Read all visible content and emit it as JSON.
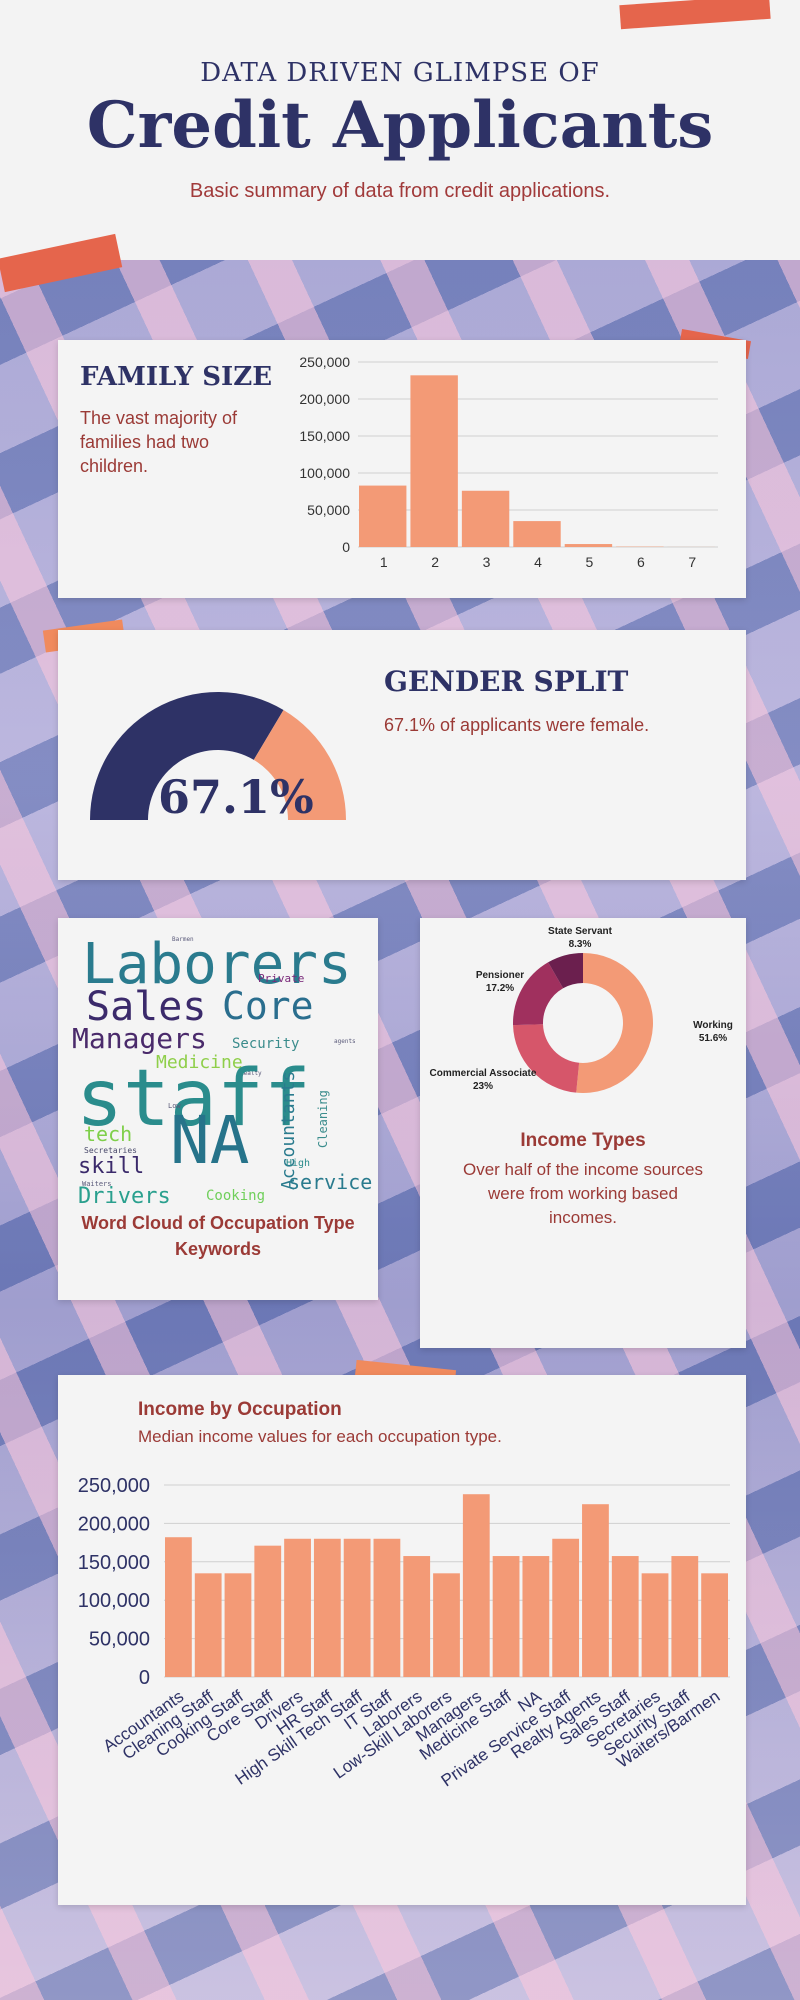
{
  "header": {
    "kicker": "DATA DRIVEN GLIMPSE OF",
    "title": "Credit Applicants",
    "subtitle": "Basic summary of data from credit applications."
  },
  "family_size": {
    "heading": "FAMILY SIZE",
    "text": "The vast majority of families had two children."
  },
  "gender": {
    "heading": "GENDER SPLIT",
    "text": "67.1% of applicants were female.",
    "value_label": "67.1%"
  },
  "wordcloud": {
    "caption": "Word Cloud of Occupation Type Keywords",
    "words": [
      {
        "text": "Laborers",
        "color": "#2a7b8e"
      },
      {
        "text": "Sales",
        "color": "#3b2a6b"
      },
      {
        "text": "Core",
        "color": "#2a6e8e"
      },
      {
        "text": "Private",
        "color": "#7a2a7a"
      },
      {
        "text": "Managers",
        "color": "#4a2a6b"
      },
      {
        "text": "Security",
        "color": "#3a8c8c"
      },
      {
        "text": "Medicine",
        "color": "#8fcf4a"
      },
      {
        "text": "staff",
        "color": "#2a8c8c"
      },
      {
        "text": "NA",
        "color": "#26738a"
      },
      {
        "text": "tech",
        "color": "#7fcf4a"
      },
      {
        "text": "Accountants",
        "color": "#2a7b8e"
      },
      {
        "text": "Cleaning",
        "color": "#3a8c8c"
      },
      {
        "text": "skill",
        "color": "#3b2a6b"
      },
      {
        "text": "Drivers",
        "color": "#2aa08e"
      },
      {
        "text": "Cooking",
        "color": "#6fcf5a"
      },
      {
        "text": "service",
        "color": "#2a8c8c"
      },
      {
        "text": "High",
        "color": "#2a7b8e"
      },
      {
        "text": "Secretaries",
        "color": "#4a4a6b"
      },
      {
        "text": "Waiters",
        "color": "#5a5a7a"
      },
      {
        "text": "Barmen",
        "color": "#5a5a7a"
      },
      {
        "text": "agents",
        "color": "#5a5a7a"
      },
      {
        "text": "Realty",
        "color": "#5a5a7a"
      },
      {
        "text": "Low",
        "color": "#5a5a7a"
      }
    ]
  },
  "income_types": {
    "heading": "Income Types",
    "text": "Over half of the income sources were from working based incomes."
  },
  "occupation": {
    "heading": "Income by Occupation",
    "text": "Median income values for each occupation type."
  },
  "colors": {
    "navy": "#2e3266",
    "salmon": "#f39a76",
    "red_text": "#9b3a36"
  },
  "chart_data": [
    {
      "id": "family_size",
      "type": "bar",
      "categories": [
        "1",
        "2",
        "3",
        "4",
        "5",
        "6",
        "7"
      ],
      "values": [
        83000,
        232000,
        76000,
        35000,
        4000,
        500,
        100
      ],
      "ylim": [
        0,
        250000
      ],
      "yticks": [
        "0",
        "50,000",
        "100,000",
        "150,000",
        "200,000",
        "250,000"
      ],
      "color": "#f39a76",
      "grid": true
    },
    {
      "id": "gender",
      "type": "pie",
      "labels": [
        "female",
        "male"
      ],
      "values": [
        67.1,
        32.9
      ],
      "colors": [
        "#2e3266",
        "#f39a76"
      ]
    },
    {
      "id": "income_types",
      "type": "pie",
      "slices": [
        {
          "label": "Working",
          "value": 51.6,
          "label_text": "51.6%",
          "color": "#f39a76"
        },
        {
          "label": "Commercial Associate",
          "value": 23,
          "label_text": "23%",
          "color": "#d6566a"
        },
        {
          "label": "Pensioner",
          "value": 17.2,
          "label_text": "17.2%",
          "color": "#a0305e"
        },
        {
          "label": "State Servant",
          "value": 8.3,
          "label_text": "8.3%",
          "color": "#6b1f4e"
        }
      ]
    },
    {
      "id": "occupation",
      "type": "bar",
      "categories": [
        "Accountants",
        "Cleaning Staff",
        "Cooking Staff",
        "Core Staff",
        "Drivers",
        "HR Staff",
        "High Skill Tech Staff",
        "IT Staff",
        "Laborers",
        "Low-Skill Laborers",
        "Managers",
        "Medicine Staff",
        "NA",
        "Private Service Staff",
        "Realty Agents",
        "Sales Staff",
        "Secretaries",
        "Security Staff",
        "Waiters/Barmen"
      ],
      "values": [
        182000,
        135000,
        135000,
        171000,
        180000,
        180000,
        180000,
        180000,
        157500,
        135000,
        238000,
        157500,
        157500,
        180000,
        225000,
        157500,
        135000,
        157500,
        135000
      ],
      "ylim": [
        0,
        250000
      ],
      "yticks": [
        "0",
        "50,000",
        "100,000",
        "150,000",
        "200,000",
        "250,000"
      ],
      "color": "#f39a76",
      "grid": true
    }
  ]
}
